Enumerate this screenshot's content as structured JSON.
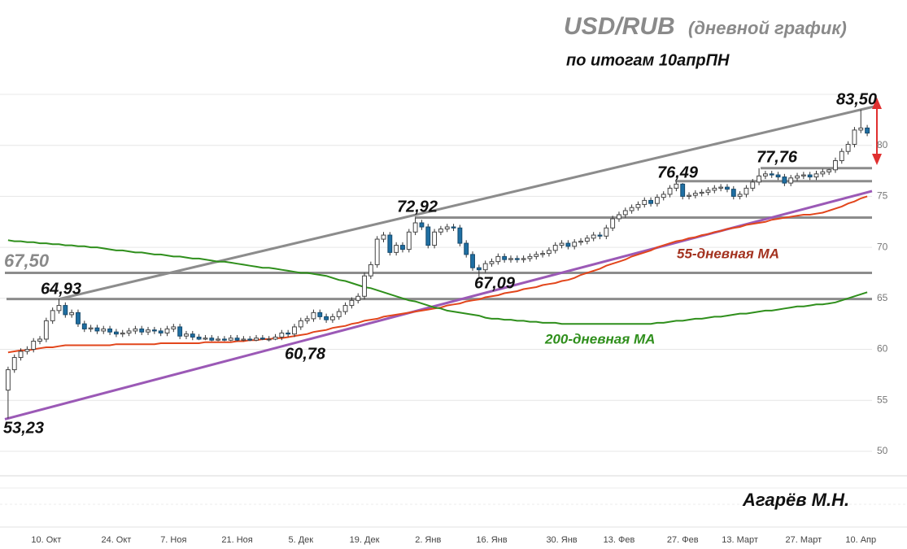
{
  "chart_data": {
    "type": "candlestick",
    "title": "USD/RUB",
    "title_note": "(дневной график)",
    "subtitle": "по итогам 10апрПН",
    "author": "Агарёв М.Н.",
    "categories": [
      null,
      null,
      null,
      null,
      null,
      null,
      "10. Окт",
      null,
      null,
      null,
      null,
      null,
      null,
      null,
      null,
      null,
      null,
      "24. Окт",
      null,
      null,
      null,
      null,
      null,
      null,
      null,
      null,
      "7. Ноя",
      null,
      null,
      null,
      null,
      null,
      null,
      null,
      null,
      null,
      "21. Ноя",
      null,
      null,
      null,
      null,
      null,
      null,
      null,
      null,
      null,
      "5. Дек",
      null,
      null,
      null,
      null,
      null,
      null,
      null,
      null,
      null,
      "19. Дек",
      null,
      null,
      null,
      null,
      null,
      null,
      null,
      null,
      null,
      "2. Янв",
      null,
      null,
      null,
      null,
      null,
      null,
      null,
      null,
      null,
      "16. Янв",
      null,
      null,
      null,
      null,
      null,
      null,
      null,
      null,
      null,
      null,
      "30. Янв",
      null,
      null,
      null,
      null,
      null,
      null,
      null,
      null,
      "13. Фев",
      null,
      null,
      null,
      null,
      null,
      null,
      null,
      null,
      null,
      "27. Фев",
      null,
      null,
      null,
      null,
      null,
      null,
      null,
      null,
      "13. Март",
      null,
      null,
      null,
      null,
      null,
      null,
      null,
      null,
      null,
      "27. Март",
      null,
      null,
      null,
      null,
      null,
      null,
      null,
      null,
      "10. Апр",
      null
    ],
    "open": [
      56.0,
      58.0,
      59.2,
      59.8,
      60.0,
      60.8,
      61.0,
      62.8,
      63.8,
      64.3,
      63.4,
      63.6,
      62.5,
      62.0,
      62.1,
      61.8,
      62.0,
      61.7,
      61.5,
      61.6,
      61.8,
      62.0,
      61.7,
      61.9,
      61.8,
      61.6,
      62.0,
      62.2,
      61.3,
      61.5,
      61.2,
      61.0,
      61.1,
      60.9,
      61.0,
      60.9,
      61.1,
      60.9,
      61.0,
      60.9,
      61.1,
      61.0,
      61.0,
      61.2,
      61.6,
      61.5,
      62.2,
      62.8,
      63.0,
      63.6,
      63.2,
      62.9,
      63.2,
      63.7,
      64.3,
      64.8,
      65.2,
      67.2,
      68.3,
      70.8,
      71.2,
      69.5,
      70.2,
      69.8,
      71.5,
      72.4,
      72.0,
      70.2,
      71.5,
      71.8,
      72.0,
      71.9,
      70.4,
      69.3,
      68.0,
      67.8,
      68.4,
      68.6,
      69.1,
      68.8,
      68.9,
      68.8,
      68.9,
      69.1,
      69.3,
      69.4,
      69.7,
      70.2,
      70.4,
      70.1,
      70.5,
      70.6,
      70.9,
      71.2,
      71.1,
      71.9,
      72.8,
      73.2,
      73.6,
      73.9,
      74.2,
      74.6,
      74.3,
      74.9,
      75.2,
      75.8,
      76.2,
      75.0,
      75.1,
      75.3,
      75.4,
      75.6,
      75.8,
      75.9,
      75.7,
      75.0,
      75.2,
      75.8,
      76.4,
      77.0,
      77.2,
      77.1,
      76.9,
      76.3,
      76.8,
      77.0,
      77.1,
      76.9,
      77.2,
      77.4,
      77.6,
      78.5,
      79.4,
      80.1,
      81.5,
      81.7
    ],
    "high": [
      58.3,
      59.5,
      60.1,
      60.3,
      61.1,
      61.3,
      63.1,
      64.1,
      64.93,
      64.6,
      63.9,
      63.9,
      62.8,
      62.4,
      62.4,
      62.3,
      62.3,
      62.0,
      61.9,
      62.1,
      62.3,
      62.3,
      62.2,
      62.2,
      62.1,
      62.3,
      62.5,
      62.5,
      61.8,
      61.8,
      61.5,
      61.4,
      61.4,
      61.3,
      61.3,
      61.4,
      61.4,
      61.3,
      61.3,
      61.4,
      61.4,
      61.3,
      61.5,
      61.9,
      61.9,
      62.5,
      63.1,
      63.3,
      63.9,
      63.9,
      63.5,
      63.5,
      64.0,
      64.6,
      65.1,
      65.5,
      67.5,
      68.6,
      71.1,
      71.5,
      71.5,
      70.5,
      70.5,
      71.8,
      72.92,
      72.7,
      72.3,
      71.8,
      72.1,
      72.3,
      72.3,
      72.2,
      70.7,
      69.6,
      68.3,
      68.7,
      68.9,
      69.4,
      69.4,
      69.2,
      69.2,
      69.2,
      69.4,
      69.6,
      69.7,
      70.0,
      70.5,
      70.7,
      70.7,
      70.8,
      70.9,
      71.2,
      71.5,
      71.5,
      72.2,
      73.1,
      73.5,
      73.9,
      74.2,
      74.5,
      74.9,
      74.9,
      75.2,
      75.5,
      76.1,
      76.49,
      76.3,
      75.4,
      75.6,
      75.7,
      75.9,
      76.1,
      76.2,
      76.2,
      76.0,
      75.5,
      76.1,
      76.7,
      77.76,
      77.5,
      77.5,
      77.4,
      77.2,
      77.1,
      77.3,
      77.4,
      77.4,
      77.5,
      77.7,
      77.7,
      78.8,
      79.7,
      80.4,
      81.8,
      83.5,
      82.0
    ],
    "low": [
      53.23,
      57.7,
      58.9,
      59.5,
      59.7,
      60.5,
      60.7,
      62.5,
      63.5,
      63.1,
      63.1,
      62.2,
      61.7,
      61.7,
      61.5,
      61.5,
      61.4,
      61.2,
      61.2,
      61.3,
      61.5,
      61.4,
      61.4,
      61.5,
      61.3,
      61.3,
      61.7,
      61.0,
      61.0,
      60.9,
      60.9,
      60.9,
      60.8,
      60.8,
      60.8,
      60.8,
      60.8,
      60.8,
      60.8,
      60.8,
      60.9,
      60.78,
      60.9,
      60.9,
      61.2,
      61.2,
      61.9,
      62.5,
      62.7,
      62.9,
      62.6,
      62.6,
      62.9,
      63.4,
      64.0,
      64.5,
      64.9,
      66.9,
      68.0,
      70.5,
      69.2,
      69.2,
      69.5,
      69.5,
      71.2,
      71.7,
      69.9,
      69.9,
      71.2,
      71.5,
      71.6,
      70.1,
      69.0,
      67.7,
      67.09,
      67.5,
      68.1,
      68.3,
      68.5,
      68.5,
      68.5,
      68.5,
      68.6,
      68.8,
      69.0,
      69.1,
      69.4,
      69.9,
      69.8,
      69.8,
      70.2,
      70.3,
      70.6,
      70.8,
      70.8,
      71.6,
      72.5,
      72.9,
      73.3,
      73.6,
      73.9,
      74.0,
      74.0,
      74.6,
      74.9,
      75.5,
      74.7,
      74.7,
      74.8,
      75.0,
      75.1,
      75.3,
      75.5,
      75.4,
      74.7,
      74.7,
      74.9,
      75.5,
      76.1,
      76.7,
      76.8,
      76.6,
      76.0,
      76.0,
      76.5,
      76.7,
      76.6,
      76.6,
      76.9,
      77.1,
      77.3,
      78.2,
      79.1,
      79.8,
      81.2,
      80.9
    ],
    "close": [
      58.0,
      59.2,
      59.8,
      60.0,
      60.8,
      61.0,
      62.8,
      63.8,
      64.3,
      63.4,
      63.6,
      62.5,
      62.0,
      62.1,
      61.8,
      62.0,
      61.7,
      61.5,
      61.6,
      61.8,
      62.0,
      61.7,
      61.9,
      61.8,
      61.6,
      62.0,
      62.2,
      61.3,
      61.5,
      61.2,
      61.0,
      61.1,
      60.9,
      61.0,
      60.9,
      61.1,
      60.9,
      61.0,
      60.9,
      61.1,
      61.0,
      61.0,
      61.2,
      61.6,
      61.5,
      62.2,
      62.8,
      63.0,
      63.6,
      63.2,
      62.9,
      63.2,
      63.7,
      64.3,
      64.8,
      65.2,
      67.2,
      68.3,
      70.8,
      71.2,
      69.5,
      70.2,
      69.8,
      71.5,
      72.4,
      72.0,
      70.2,
      71.5,
      71.8,
      72.0,
      71.9,
      70.4,
      69.3,
      68.0,
      67.8,
      68.4,
      68.6,
      69.1,
      68.8,
      68.9,
      68.8,
      68.9,
      69.1,
      69.3,
      69.4,
      69.7,
      70.2,
      70.4,
      70.1,
      70.5,
      70.6,
      70.9,
      71.2,
      71.1,
      71.9,
      72.8,
      73.2,
      73.6,
      73.9,
      74.2,
      74.6,
      74.3,
      74.9,
      75.2,
      75.8,
      76.2,
      75.0,
      75.1,
      75.3,
      75.4,
      75.6,
      75.8,
      75.9,
      75.7,
      75.0,
      75.2,
      75.8,
      76.4,
      77.0,
      77.2,
      77.1,
      76.9,
      76.3,
      76.8,
      77.0,
      77.1,
      76.9,
      77.2,
      77.4,
      77.6,
      78.5,
      79.4,
      80.1,
      81.5,
      81.7,
      81.2
    ],
    "up_color": "#ffffff",
    "down_color": "#1f6fa3",
    "series": [
      {
        "name": "55-дневная МА",
        "color": "#e2461c",
        "values": [
          59.7,
          59.8,
          59.9,
          59.9,
          60.0,
          60.1,
          60.2,
          60.2,
          60.3,
          60.4,
          60.4,
          60.4,
          60.4,
          60.4,
          60.4,
          60.4,
          60.4,
          60.5,
          60.5,
          60.5,
          60.5,
          60.5,
          60.5,
          60.5,
          60.6,
          60.6,
          60.6,
          60.6,
          60.6,
          60.6,
          60.6,
          60.7,
          60.7,
          60.7,
          60.7,
          60.7,
          60.8,
          60.8,
          60.9,
          60.9,
          61.0,
          61.0,
          61.1,
          61.1,
          61.2,
          61.3,
          61.4,
          61.5,
          61.7,
          61.8,
          61.9,
          62.1,
          62.2,
          62.3,
          62.5,
          62.6,
          62.8,
          62.9,
          63.0,
          63.2,
          63.3,
          63.4,
          63.5,
          63.6,
          63.7,
          63.8,
          63.9,
          64.0,
          64.1,
          64.3,
          64.4,
          64.5,
          64.7,
          64.8,
          64.9,
          65.1,
          65.2,
          65.3,
          65.5,
          65.6,
          65.7,
          65.9,
          66.0,
          66.1,
          66.3,
          66.4,
          66.5,
          66.7,
          66.8,
          67.0,
          67.3,
          67.5,
          67.7,
          67.9,
          68.2,
          68.4,
          68.6,
          68.8,
          69.1,
          69.3,
          69.5,
          69.7,
          70.0,
          70.2,
          70.4,
          70.6,
          70.7,
          70.9,
          71.0,
          71.2,
          71.3,
          71.5,
          71.6,
          71.8,
          71.9,
          72.0,
          72.2,
          72.3,
          72.4,
          72.5,
          72.7,
          72.8,
          72.9,
          73.0,
          73.1,
          73.2,
          73.2,
          73.3,
          73.4,
          73.6,
          73.8,
          74.0,
          74.3,
          74.5,
          74.8,
          75.0
        ]
      },
      {
        "name": "200-дневная МА",
        "color": "#2f8f1c",
        "values": [
          70.7,
          70.6,
          70.6,
          70.5,
          70.5,
          70.4,
          70.4,
          70.3,
          70.3,
          70.2,
          70.2,
          70.1,
          70.1,
          70.0,
          70.0,
          69.9,
          69.8,
          69.7,
          69.7,
          69.6,
          69.5,
          69.5,
          69.4,
          69.3,
          69.3,
          69.2,
          69.1,
          69.1,
          69.0,
          68.9,
          68.9,
          68.8,
          68.7,
          68.6,
          68.6,
          68.5,
          68.4,
          68.3,
          68.2,
          68.1,
          68.0,
          68.0,
          67.9,
          67.8,
          67.7,
          67.6,
          67.5,
          67.5,
          67.4,
          67.3,
          67.2,
          67.0,
          66.8,
          66.7,
          66.5,
          66.3,
          66.1,
          66.0,
          65.8,
          65.6,
          65.4,
          65.2,
          65.0,
          64.8,
          64.7,
          64.5,
          64.3,
          64.1,
          64.0,
          63.8,
          63.7,
          63.6,
          63.5,
          63.4,
          63.3,
          63.1,
          63.0,
          63.0,
          62.9,
          62.9,
          62.8,
          62.8,
          62.7,
          62.7,
          62.6,
          62.6,
          62.6,
          62.5,
          62.5,
          62.5,
          62.5,
          62.5,
          62.5,
          62.5,
          62.5,
          62.5,
          62.5,
          62.5,
          62.5,
          62.5,
          62.5,
          62.5,
          62.6,
          62.6,
          62.7,
          62.8,
          62.8,
          62.9,
          63.0,
          63.0,
          63.1,
          63.2,
          63.2,
          63.3,
          63.4,
          63.5,
          63.5,
          63.6,
          63.7,
          63.8,
          63.8,
          63.9,
          64.0,
          64.1,
          64.2,
          64.2,
          64.3,
          64.4,
          64.4,
          64.5,
          64.6,
          64.8,
          65.0,
          65.2,
          65.4,
          65.6
        ]
      }
    ],
    "levels": [
      {
        "value": 53.23,
        "label": "53,23"
      },
      {
        "value": 64.93,
        "label": "64,93",
        "line": true
      },
      {
        "value": 60.78,
        "label": "60,78"
      },
      {
        "value": 67.5,
        "label": "67,50",
        "line": true
      },
      {
        "value": 72.92,
        "label": "72,92",
        "line": true
      },
      {
        "value": 67.09,
        "label": "67,09"
      },
      {
        "value": 76.49,
        "label": "76,49",
        "line": true
      },
      {
        "value": 77.76,
        "label": "77,76",
        "line": true
      },
      {
        "value": 83.5,
        "label": "83,50"
      }
    ],
    "ylim": [
      47.6,
      85
    ],
    "yticks": [
      50,
      55,
      60,
      65,
      70,
      75,
      80
    ],
    "grid": true
  }
}
